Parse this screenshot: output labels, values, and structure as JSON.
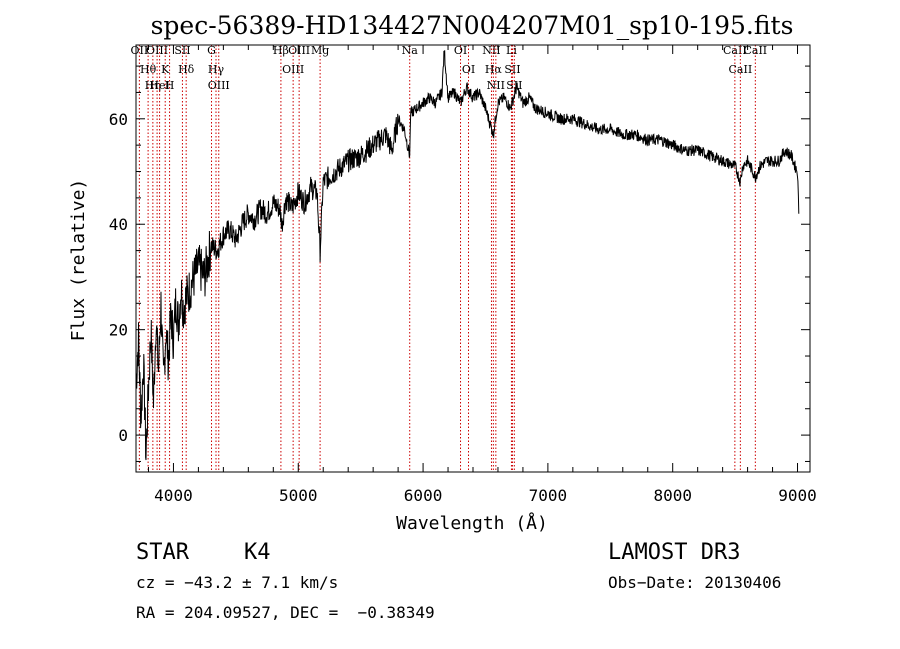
{
  "chart_data": {
    "type": "line",
    "title": "spec-56389-HD134427N004207M01_sp10-195.fits",
    "xlabel": "Wavelength (Å)",
    "ylabel": "Flux (relative)",
    "xlim": [
      3700,
      9100
    ],
    "ylim": [
      -7,
      74
    ],
    "xticks": [
      4000,
      5000,
      6000,
      7000,
      8000,
      9000
    ],
    "xtick_labels": [
      "4000",
      "5000",
      "6000",
      "7000",
      "8000",
      "9000"
    ],
    "yticks": [
      0,
      20,
      40,
      60
    ],
    "ytick_labels": [
      "0",
      "20",
      "40",
      "60"
    ],
    "grid": false,
    "series": [
      {
        "name": "spectrum",
        "x": [
          3700,
          3720,
          3740,
          3760,
          3780,
          3800,
          3820,
          3840,
          3860,
          3880,
          3900,
          3920,
          3940,
          3960,
          3980,
          4000,
          4020,
          4040,
          4060,
          4080,
          4100,
          4120,
          4150,
          4200,
          4250,
          4300,
          4350,
          4400,
          4450,
          4500,
          4550,
          4600,
          4650,
          4700,
          4750,
          4800,
          4850,
          4870,
          4900,
          4950,
          5000,
          5050,
          5100,
          5150,
          5175,
          5200,
          5250,
          5300,
          5400,
          5500,
          5600,
          5700,
          5750,
          5800,
          5850,
          5893,
          5900,
          5950,
          6000,
          6050,
          6100,
          6150,
          6170,
          6200,
          6250,
          6300,
          6350,
          6400,
          6450,
          6500,
          6550,
          6563,
          6580,
          6600,
          6650,
          6700,
          6750,
          6800,
          6850,
          6900,
          7000,
          7100,
          7200,
          7300,
          7400,
          7500,
          7600,
          7700,
          7800,
          7900,
          8000,
          8100,
          8200,
          8300,
          8400,
          8500,
          8542,
          8560,
          8600,
          8662,
          8700,
          8750,
          8800,
          8850,
          8900,
          8950,
          8980,
          9000,
          9010
        ],
        "y": [
          10,
          18,
          3,
          14,
          -4,
          9,
          20,
          6,
          22,
          12,
          25,
          10,
          20,
          14,
          23,
          18,
          26,
          21,
          28,
          24,
          26,
          27,
          29,
          32,
          30,
          36,
          35,
          38,
          39,
          37,
          40,
          42,
          41,
          43,
          42,
          44,
          43,
          40,
          45,
          43,
          46,
          44,
          47,
          46,
          35,
          48,
          49,
          50,
          52,
          53,
          55,
          57,
          54,
          60,
          58,
          53,
          61,
          62,
          63,
          64,
          63,
          65,
          73,
          64,
          65,
          63,
          66,
          64,
          65,
          62,
          58,
          57,
          60,
          63,
          64,
          62,
          66,
          63,
          64,
          62,
          61,
          60,
          60,
          59,
          58,
          58,
          57,
          57,
          56,
          56,
          55,
          54,
          54,
          53,
          52,
          51,
          48,
          51,
          52,
          49,
          51,
          52,
          52,
          52,
          54,
          53,
          51,
          50,
          42
        ]
      }
    ],
    "annotations": [
      {
        "label": "OII",
        "wavelength": 3727
      },
      {
        "label": "Hθ",
        "wavelength": 3797
      },
      {
        "label": "OIII",
        "wavelength": 3869
      },
      {
        "label": "HeI",
        "wavelength": 3889
      },
      {
        "label": "Hη",
        "wavelength": 3835
      },
      {
        "label": "K",
        "wavelength": 3934
      },
      {
        "label": "H",
        "wavelength": 3969
      },
      {
        "label": "SII",
        "wavelength": 4072
      },
      {
        "label": "Hδ",
        "wavelength": 4102
      },
      {
        "label": "OIII",
        "wavelength": 4363
      },
      {
        "label": "Hγ",
        "wavelength": 4341
      },
      {
        "label": "G",
        "wavelength": 4305
      },
      {
        "label": "Hβ",
        "wavelength": 4861
      },
      {
        "label": "OIII",
        "wavelength": 4959
      },
      {
        "label": "OIII",
        "wavelength": 5007
      },
      {
        "label": "Mg",
        "wavelength": 5175
      },
      {
        "label": "Na",
        "wavelength": 5893
      },
      {
        "label": "OI",
        "wavelength": 6300
      },
      {
        "label": "OI",
        "wavelength": 6364
      },
      {
        "label": "Hα",
        "wavelength": 6563
      },
      {
        "label": "NII",
        "wavelength": 6548
      },
      {
        "label": "NII",
        "wavelength": 6583
      },
      {
        "label": "SII",
        "wavelength": 6716
      },
      {
        "label": "SII",
        "wavelength": 6731
      },
      {
        "label": "Li",
        "wavelength": 6708
      },
      {
        "label": "CaII",
        "wavelength": 8498
      },
      {
        "label": "CaII",
        "wavelength": 8542
      },
      {
        "label": "CaII",
        "wavelength": 8662
      }
    ]
  },
  "info": {
    "class": "STAR",
    "subclass": "K4",
    "survey": "LAMOST DR3",
    "cz_line": "cz = −43.2 ± 7.1 km/s",
    "obs_date": "Obs−Date: 20130406",
    "coords": "RA = 204.09527, DEC =  −0.38349"
  },
  "colors": {
    "line": "#000000",
    "marker_line": "#cc0000",
    "axis": "#000000",
    "background": "#ffffff"
  }
}
